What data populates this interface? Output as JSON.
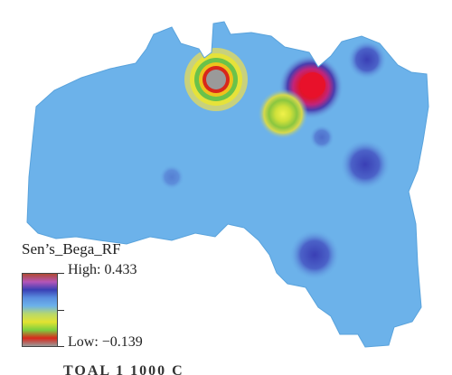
{
  "map": {
    "base_color": "#6cb2ea",
    "hotspots": [
      {
        "name": "high-hotspot",
        "value": 0.433,
        "color_core": "#e0152a"
      },
      {
        "name": "low-hotspot",
        "value": -0.139,
        "color_core": "#9a9a9a"
      }
    ]
  },
  "legend": {
    "title": "Sen’s_Bega_RF",
    "high_label": "High: 0.433",
    "low_label": "Low: −0.139",
    "ramp_colors": [
      "#b04a34",
      "#b455b8",
      "#3a3fb5",
      "#5a8fe0",
      "#6cb2ea",
      "#b8d86a",
      "#e3e331",
      "#7ccf3f",
      "#d8271b",
      "#9a9a9a"
    ]
  },
  "footer": {
    "cutoff_text": "TOAL 1 1000 C"
  }
}
